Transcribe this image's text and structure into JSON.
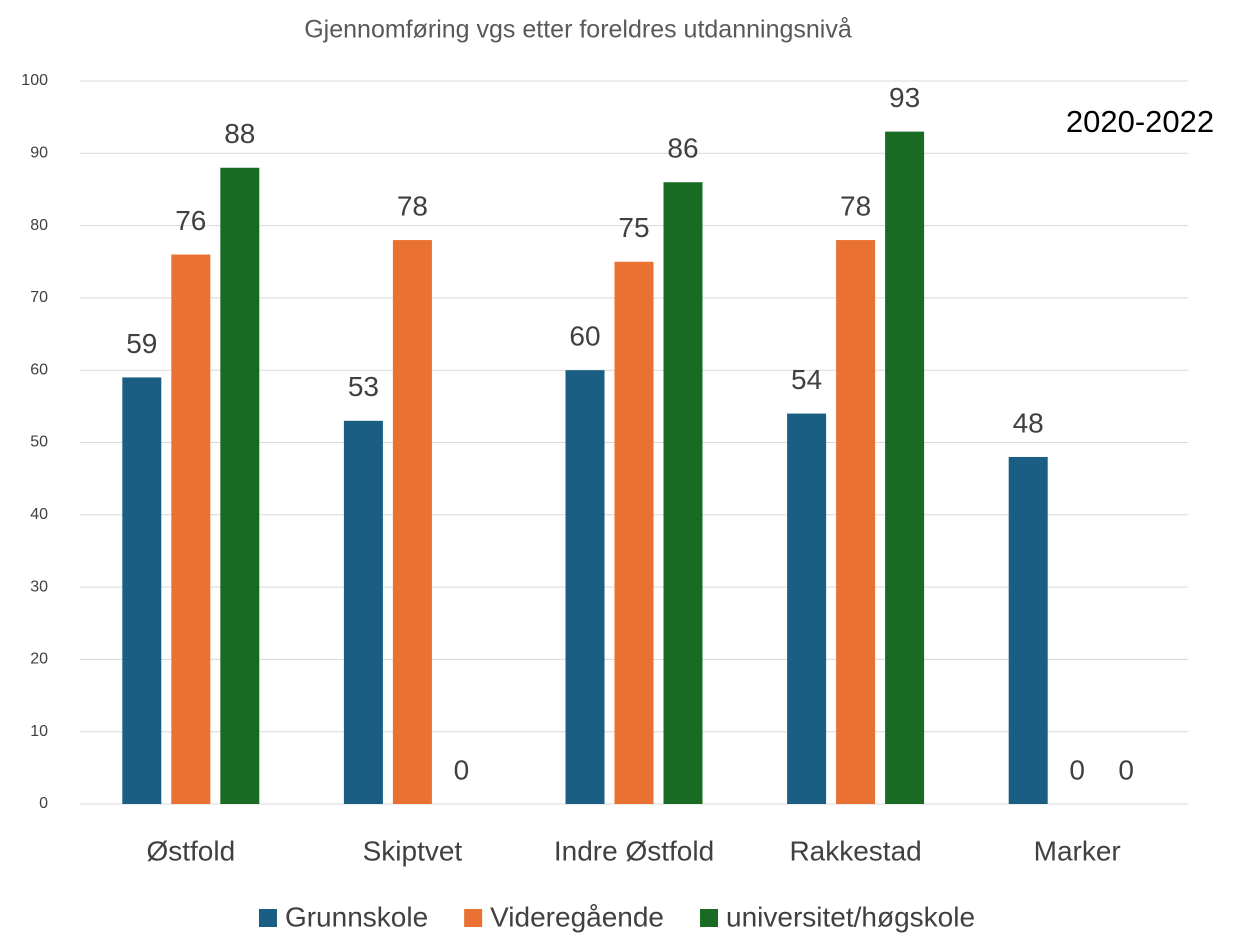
{
  "chart_data": {
    "type": "bar",
    "title": "Gjennomføring vgs etter foreldres utdanningsnivå",
    "annotation": "2020-2022",
    "categories": [
      "Østfold",
      "Skiptvet",
      "Indre Østfold",
      "Rakkestad",
      "Marker"
    ],
    "series": [
      {
        "name": "Grunnskole",
        "color": "#1b5e83",
        "values": [
          59,
          53,
          60,
          54,
          48
        ]
      },
      {
        "name": "Videregående",
        "color": "#e97132",
        "values": [
          76,
          78,
          75,
          78,
          0
        ]
      },
      {
        "name": "universitet/høgskole",
        "color": "#196b24",
        "values": [
          88,
          0,
          86,
          93,
          0
        ]
      }
    ],
    "ylim": [
      0,
      100
    ],
    "yticks": [
      0,
      10,
      20,
      30,
      40,
      50,
      60,
      70,
      80,
      90,
      100
    ],
    "grid": true,
    "legend": "bottom"
  }
}
